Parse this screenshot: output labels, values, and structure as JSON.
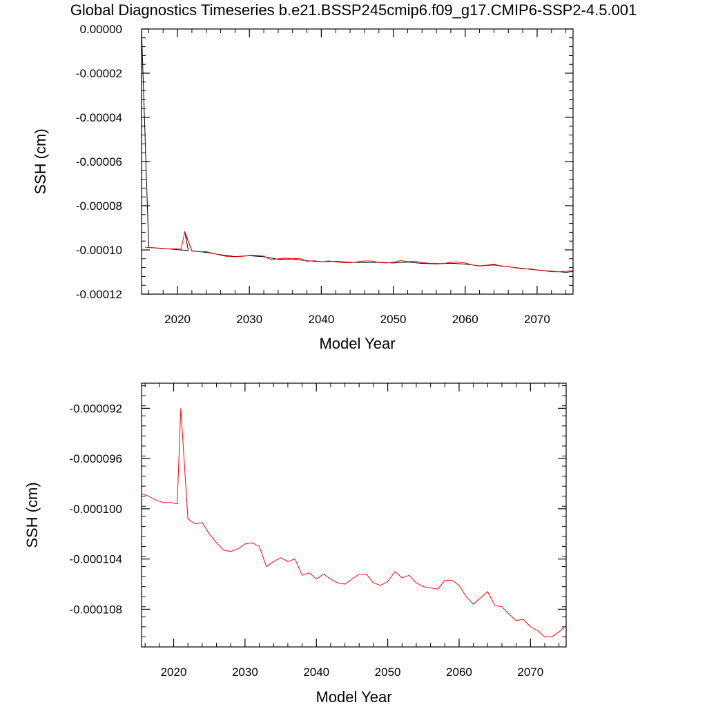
{
  "title": "Global Diagnostics Timeseries b.e21.BSSP245cmip6.f09_g17.CMIP6-SSP2-4.5.001",
  "chart_data": [
    {
      "type": "line",
      "xlabel": "Model Year",
      "ylabel": "SSH (cm)",
      "xlim": [
        2015,
        2075
      ],
      "ylim": [
        -0.00012,
        0.0
      ],
      "x_ticks": [
        2020,
        2030,
        2040,
        2050,
        2060,
        2070
      ],
      "x_tick_labels": [
        "2020",
        "2030",
        "2040",
        "2050",
        "2060",
        "2070"
      ],
      "y_ticks": [
        0.0,
        -2e-05,
        -4e-05,
        -6e-05,
        -8e-05,
        -0.0001,
        -0.00012
      ],
      "y_tick_labels": [
        "0.00000",
        "-0.00002",
        "-0.00004",
        "-0.00006",
        "-0.00008",
        "-0.00010",
        "-0.00012"
      ],
      "grid": false,
      "series": [
        {
          "color": "#000000",
          "x": [
            2015.0,
            2016.0,
            2018.0,
            2020.0,
            2021.5,
            2021.0,
            2022.0,
            2024.0,
            2026.0,
            2028.0,
            2030.0,
            2032.0,
            2034.0,
            2036.0,
            2038.0,
            2040.0,
            2042.0,
            2044.0,
            2046.0,
            2048.0,
            2050.0,
            2052.0,
            2054.0,
            2056.0,
            2058.0,
            2060.0,
            2062.0,
            2064.0,
            2066.0,
            2068.0,
            2070.0,
            2072.0,
            2074.0,
            2075.0
          ],
          "values": [
            0.0,
            -9.89e-05,
            -9.93e-05,
            -9.99e-05,
            -0.0001003,
            -9.16e-05,
            -0.0001004,
            -0.0001011,
            -0.0001022,
            -0.000103,
            -0.0001026,
            -0.0001031,
            -0.0001042,
            -0.0001041,
            -0.0001049,
            -0.0001053,
            -0.0001052,
            -0.0001056,
            -0.0001057,
            -0.0001056,
            -0.0001059,
            -0.0001055,
            -0.0001061,
            -0.0001063,
            -0.000106,
            -0.0001064,
            -0.0001072,
            -0.0001068,
            -0.0001076,
            -0.0001084,
            -0.0001091,
            -0.0001096,
            -0.0001101,
            -0.0001098
          ]
        },
        {
          "color": "#ff0000",
          "x": [
            2015.5,
            2016.5,
            2017.5,
            2018.5,
            2019.5,
            2020.5,
            2021.0,
            2022.0,
            2023.0,
            2024.0,
            2025.0,
            2026.0,
            2027.0,
            2028.0,
            2029.0,
            2030.0,
            2031.0,
            2032.0,
            2033.0,
            2034.0,
            2035.0,
            2036.0,
            2037.0,
            2038.0,
            2039.0,
            2040.0,
            2041.0,
            2042.0,
            2043.0,
            2044.0,
            2045.0,
            2046.0,
            2047.0,
            2048.0,
            2049.0,
            2050.0,
            2051.0,
            2052.0,
            2053.0,
            2054.0,
            2055.0,
            2056.0,
            2057.0,
            2058.0,
            2059.0,
            2060.0,
            2061.0,
            2062.0,
            2063.0,
            2064.0,
            2065.0,
            2066.0,
            2067.0,
            2068.0,
            2069.0,
            2070.0,
            2071.0,
            2072.0,
            2073.0,
            2074.0,
            2075.0
          ],
          "values": [
            -9.88e-05,
            -9.9e-05,
            -9.93e-05,
            -9.95e-05,
            -9.95e-05,
            -9.96e-05,
            -9.2e-05,
            -0.0001005,
            -0.0001008,
            -0.0001008,
            -0.0001016,
            -0.0001024,
            -0.000103,
            -0.0001031,
            -0.0001029,
            -0.0001025,
            -0.0001024,
            -0.0001028,
            -0.0001044,
            -0.000104,
            -0.0001037,
            -0.000104,
            -0.0001038,
            -0.0001051,
            -0.0001049,
            -0.0001054,
            -0.000105,
            -0.0001054,
            -0.0001057,
            -0.0001058,
            -0.0001054,
            -0.000105,
            -0.000105,
            -0.0001057,
            -0.0001059,
            -0.0001056,
            -0.0001048,
            -0.0001053,
            -0.0001051,
            -0.0001057,
            -0.000106,
            -0.0001061,
            -0.0001062,
            -0.0001055,
            -0.0001055,
            -0.0001059,
            -0.0001068,
            -0.0001073,
            -0.0001069,
            -0.0001064,
            -0.0001074,
            -0.0001075,
            -0.0001081,
            -0.0001086,
            -0.0001085,
            -0.0001091,
            -0.0001094,
            -0.0001099,
            -0.0001099,
            -0.0001096,
            -0.0001093
          ]
        }
      ]
    },
    {
      "type": "line",
      "xlabel": "Model Year",
      "ylabel": "SSH (cm)",
      "xlim": [
        2015.5,
        2075.0
      ],
      "ylim": [
        -0.000111,
        -9e-05
      ],
      "x_ticks": [
        2020,
        2030,
        2040,
        2050,
        2060,
        2070
      ],
      "x_tick_labels": [
        "2020",
        "2030",
        "2040",
        "2050",
        "2060",
        "2070"
      ],
      "y_ticks": [
        -9.2e-05,
        -9.6e-05,
        -0.0001,
        -0.000104,
        -0.000108
      ],
      "y_tick_labels": [
        "-0.000092",
        "-0.000096",
        "-0.000100",
        "-0.000104",
        "-0.000108"
      ],
      "grid": false,
      "series": [
        {
          "color": "#ff0000",
          "x": [
            2015.5,
            2016.5,
            2017.5,
            2018.5,
            2019.5,
            2020.5,
            2021.0,
            2022.0,
            2023.0,
            2024.0,
            2025.0,
            2026.0,
            2027.0,
            2028.0,
            2029.0,
            2030.0,
            2031.0,
            2032.0,
            2033.0,
            2034.0,
            2035.0,
            2036.0,
            2037.0,
            2038.0,
            2039.0,
            2040.0,
            2041.0,
            2042.0,
            2043.0,
            2044.0,
            2045.0,
            2046.0,
            2047.0,
            2048.0,
            2049.0,
            2050.0,
            2051.0,
            2052.0,
            2053.0,
            2054.0,
            2055.0,
            2056.0,
            2057.0,
            2058.0,
            2059.0,
            2060.0,
            2061.0,
            2062.0,
            2063.0,
            2064.0,
            2065.0,
            2066.0,
            2067.0,
            2068.0,
            2069.0,
            2070.0,
            2071.0,
            2072.0,
            2073.0,
            2074.0,
            2075.0
          ],
          "values": [
            -9.88e-05,
            -9.9e-05,
            -9.93e-05,
            -9.95e-05,
            -9.95e-05,
            -9.96e-05,
            -9.2e-05,
            -0.0001008,
            -0.0001012,
            -0.0001011,
            -0.000102,
            -0.0001027,
            -0.0001033,
            -0.0001034,
            -0.0001032,
            -0.0001028,
            -0.0001027,
            -0.000103,
            -0.0001046,
            -0.0001042,
            -0.0001039,
            -0.0001042,
            -0.000104,
            -0.0001053,
            -0.0001051,
            -0.0001056,
            -0.0001052,
            -0.0001056,
            -0.0001059,
            -0.000106,
            -0.0001056,
            -0.0001052,
            -0.0001052,
            -0.0001059,
            -0.0001061,
            -0.0001058,
            -0.000105,
            -0.0001055,
            -0.0001053,
            -0.0001059,
            -0.0001062,
            -0.0001063,
            -0.0001064,
            -0.0001057,
            -0.0001057,
            -0.0001061,
            -0.000107,
            -0.0001076,
            -0.0001071,
            -0.0001066,
            -0.0001077,
            -0.0001078,
            -0.0001084,
            -0.0001089,
            -0.0001088,
            -0.0001094,
            -0.0001097,
            -0.0001102,
            -0.0001102,
            -0.0001098,
            -0.0001093
          ]
        }
      ]
    }
  ]
}
